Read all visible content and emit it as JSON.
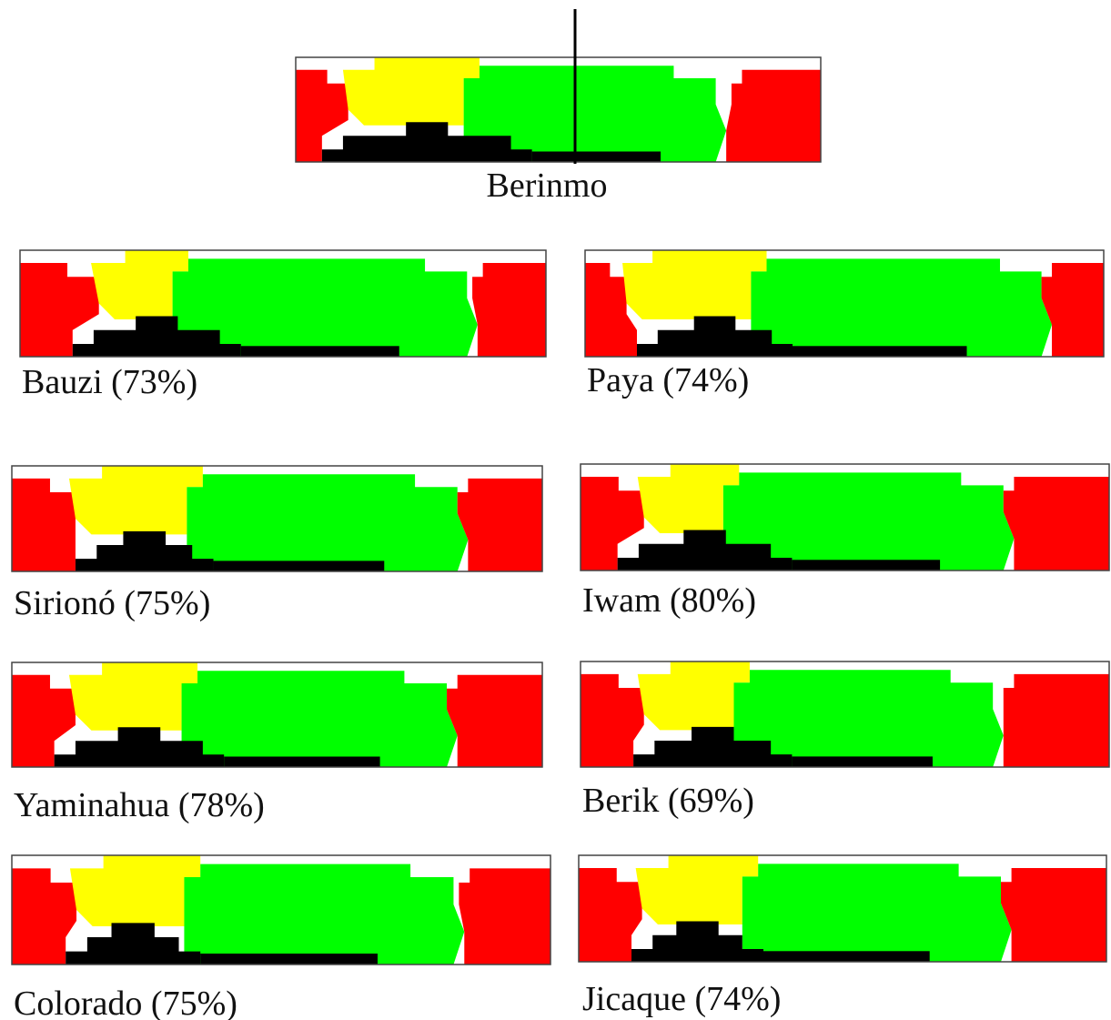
{
  "figure": {
    "reference": {
      "label": "Berinmo"
    },
    "panels": [
      {
        "label": "Bauzi (73%)"
      },
      {
        "label": "Paya (74%)"
      },
      {
        "label": "Sirionó (75%)"
      },
      {
        "label": "Iwam (80%)"
      },
      {
        "label": "Yaminahua (78%)"
      },
      {
        "label": "Berik (69%)"
      },
      {
        "label": "Colorado (75%)"
      },
      {
        "label": "Jicaque (74%)"
      }
    ]
  }
}
